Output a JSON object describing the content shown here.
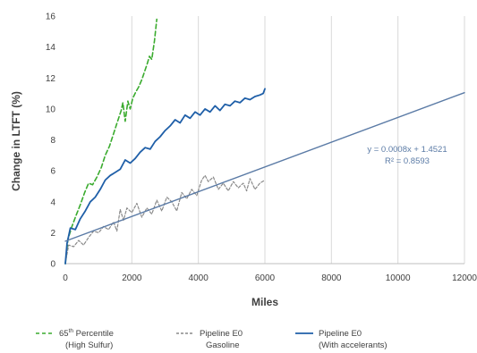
{
  "chart_data": {
    "type": "line",
    "xlabel": "Miles",
    "ylabel": "Change in LTFT (%)",
    "xlim": [
      0,
      12000
    ],
    "ylim": [
      0,
      16
    ],
    "xticks": [
      0,
      2000,
      4000,
      6000,
      8000,
      10000,
      12000
    ],
    "yticks": [
      0,
      2,
      4,
      6,
      8,
      10,
      12,
      14,
      16
    ],
    "grid": "vertical",
    "legend_position": "bottom",
    "series": [
      {
        "name_line1": "65th Percentile",
        "name_line2": "(High Sulfur)",
        "style": "dashed",
        "color": "#3aab2e",
        "x": [
          0,
          80,
          200,
          320,
          450,
          580,
          700,
          820,
          950,
          1080,
          1200,
          1330,
          1450,
          1570,
          1680,
          1730,
          1800,
          1880,
          1950,
          2030,
          2120,
          2200,
          2300,
          2380,
          2460,
          2530,
          2600,
          2680,
          2750
        ],
        "y": [
          0,
          1.6,
          2.4,
          3.1,
          3.8,
          4.6,
          5.2,
          5.1,
          5.6,
          6.2,
          7.0,
          7.6,
          8.4,
          9.2,
          9.9,
          10.4,
          9.2,
          10.5,
          10.0,
          10.7,
          11.1,
          11.4,
          11.9,
          12.4,
          12.9,
          13.4,
          13.2,
          14.4,
          15.8
        ]
      },
      {
        "name_line1": "Pipeline E0",
        "name_line2": "Gasoline",
        "style": "dashed",
        "color": "#8a8a8a",
        "x": [
          0,
          100,
          250,
          400,
          550,
          700,
          850,
          1000,
          1150,
          1300,
          1450,
          1550,
          1650,
          1750,
          1850,
          2000,
          2150,
          2300,
          2450,
          2600,
          2750,
          2900,
          3050,
          3200,
          3350,
          3500,
          3650,
          3800,
          3950,
          4100,
          4200,
          4300,
          4450,
          4600,
          4750,
          4900,
          5050,
          5200,
          5350,
          5450,
          5550,
          5700,
          5850,
          6000
        ],
        "y": [
          0,
          1.2,
          1.1,
          1.5,
          1.2,
          1.7,
          2.1,
          2.0,
          2.4,
          2.2,
          2.7,
          2.1,
          3.5,
          2.8,
          3.6,
          3.3,
          3.9,
          3.0,
          3.6,
          3.2,
          4.1,
          3.4,
          4.3,
          4.0,
          3.4,
          4.6,
          4.2,
          4.8,
          4.4,
          5.4,
          5.7,
          5.3,
          5.6,
          4.8,
          5.2,
          4.7,
          5.3,
          4.9,
          5.2,
          4.7,
          5.5,
          4.8,
          5.2,
          5.4
        ]
      },
      {
        "name_line1": "Pipeline E0",
        "name_line2": "(With accelerants)",
        "style": "solid",
        "color": "#1f5fa8",
        "x": [
          0,
          50,
          150,
          300,
          450,
          600,
          750,
          900,
          1050,
          1200,
          1350,
          1500,
          1650,
          1800,
          1950,
          2100,
          2250,
          2400,
          2550,
          2700,
          2850,
          3000,
          3150,
          3300,
          3450,
          3600,
          3750,
          3900,
          4050,
          4200,
          4350,
          4500,
          4650,
          4800,
          4950,
          5100,
          5250,
          5400,
          5550,
          5700,
          5850,
          5950,
          6000
        ],
        "y": [
          0,
          1.3,
          2.3,
          2.2,
          2.9,
          3.4,
          4.0,
          4.3,
          4.8,
          5.4,
          5.7,
          5.9,
          6.1,
          6.7,
          6.5,
          6.8,
          7.2,
          7.5,
          7.4,
          7.9,
          8.2,
          8.6,
          8.9,
          9.3,
          9.1,
          9.6,
          9.4,
          9.8,
          9.6,
          10.0,
          9.8,
          10.2,
          9.9,
          10.3,
          10.2,
          10.5,
          10.4,
          10.7,
          10.6,
          10.8,
          10.9,
          11.0,
          11.3
        ]
      },
      {
        "name_line1": "",
        "name_line2": "",
        "style": "trendline",
        "color": "#5b7ba6",
        "x": [
          0,
          12000
        ],
        "y": [
          1.4521,
          11.0521
        ]
      }
    ],
    "annotation_equation": "y = 0.0008x + 1.4521",
    "annotation_r2": "R² = 0.8593",
    "legend_sup": "th"
  }
}
